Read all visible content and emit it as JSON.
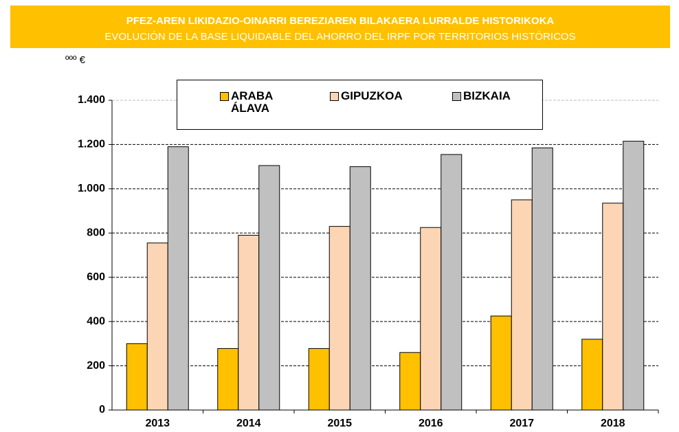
{
  "chart_data": {
    "type": "bar",
    "title": "PFEZ-AREN LIKIDAZIO-OINARRI BEREZIAREN BILAKAERA LURRALDE HISTORIKOKA",
    "subtitle": "EVOLUCIÓN DE LA BASE LIQUIDABLE DEL AHORRO DEL IRPF POR TERRITORIOS HISTÓRICOS",
    "unit_label": "ººº €",
    "categories": [
      "2013",
      "2014",
      "2015",
      "2016",
      "2017",
      "2018"
    ],
    "series": [
      {
        "name": "ARABA ÁLAVA",
        "color": "#ffc000",
        "values": [
          300,
          278,
          278,
          260,
          425,
          320
        ]
      },
      {
        "name": "GIPUZKOA",
        "color": "#fcd5b5",
        "values": [
          755,
          790,
          830,
          825,
          950,
          935
        ]
      },
      {
        "name": "BIZKAIA",
        "color": "#c0c0c0",
        "values": [
          1190,
          1105,
          1100,
          1155,
          1185,
          1215
        ]
      }
    ],
    "ylim": [
      0,
      1400
    ],
    "yticks": [
      0,
      200,
      400,
      600,
      800,
      {
        "value": 1000,
        "label": "1.000"
      },
      {
        "value": 1200,
        "label": "1.200"
      },
      {
        "value": 1400,
        "label": "1.400"
      }
    ],
    "grid": true,
    "legend": "top"
  }
}
